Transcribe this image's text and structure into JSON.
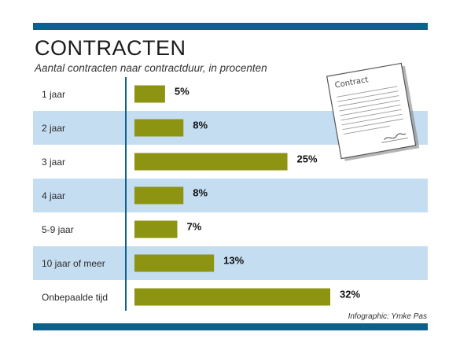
{
  "header": {
    "title": "CONTRACTEN",
    "subtitle": "Aantal contracten naar contractduur, in procenten"
  },
  "illustration": {
    "icon": "contract-document-icon",
    "label": "Contract"
  },
  "credit": "Infographic: Ymke Pas",
  "colors": {
    "bar": "#8c9412",
    "band": "#c5ddf1",
    "axis": "#0b6189",
    "top_bar": "#0b6189"
  },
  "chart_data": {
    "type": "bar",
    "orientation": "horizontal",
    "categories": [
      "1 jaar",
      "2 jaar",
      "3 jaar",
      "4 jaar",
      "5-9 jaar",
      "10 jaar of meer",
      "Onbepaalde tijd"
    ],
    "values": [
      5,
      8,
      25,
      8,
      7,
      13,
      32
    ],
    "value_labels": [
      "5%",
      "8%",
      "25%",
      "8%",
      "7%",
      "13%",
      "32%"
    ],
    "unit": "%",
    "title": "CONTRACTEN",
    "subtitle": "Aantal contracten naar contractduur, in procenten",
    "xlim": [
      0,
      32
    ],
    "grid": false,
    "legend": "none"
  }
}
